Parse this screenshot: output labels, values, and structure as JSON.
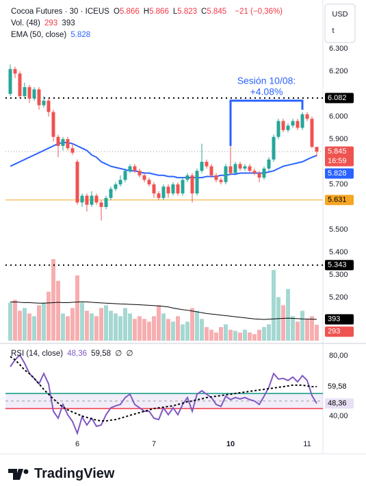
{
  "header": {
    "symbol": "Cocoa Futures · 30 · ICEUS",
    "ohlc": [
      {
        "label": "O",
        "value": "5.866"
      },
      {
        "label": "H",
        "value": "5.866"
      },
      {
        "label": "L",
        "value": "5.823"
      },
      {
        "label": "C",
        "value": "5.845"
      }
    ],
    "change": "−21 (−0,36%)",
    "currency": "USD",
    "currency_icon": "t",
    "countdown": "16:59"
  },
  "brand": "TradingView",
  "chart_data": {
    "type": "candlestick",
    "categories": [
      null,
      null,
      null,
      null,
      null,
      null,
      null,
      null,
      null,
      null,
      null,
      null,
      null,
      null,
      "6",
      null,
      null,
      null,
      null,
      null,
      null,
      null,
      null,
      null,
      null,
      null,
      null,
      null,
      null,
      null,
      "7",
      null,
      null,
      null,
      null,
      null,
      null,
      null,
      null,
      null,
      null,
      null,
      null,
      null,
      null,
      null,
      "10",
      null,
      null,
      null,
      null,
      null,
      null,
      null,
      null,
      null,
      null,
      null,
      null,
      null,
      null,
      null,
      "11",
      null,
      null
    ],
    "open": [
      6.1,
      6.21,
      6.19,
      6.09,
      6.13,
      6.08,
      6.12,
      6.05,
      6.07,
      6.02,
      5.91,
      5.87,
      5.9,
      5.86,
      5.8,
      5.62,
      5.65,
      5.61,
      5.65,
      5.62,
      5.6,
      5.64,
      5.68,
      5.7,
      5.72,
      5.76,
      5.78,
      5.76,
      5.74,
      5.72,
      5.7,
      5.66,
      5.64,
      5.69,
      5.66,
      5.7,
      5.66,
      5.72,
      5.74,
      5.66,
      5.76,
      5.8,
      5.78,
      5.74,
      5.72,
      5.71,
      5.78,
      5.75,
      5.79,
      5.77,
      5.78,
      5.76,
      5.75,
      5.73,
      5.77,
      5.81,
      5.91,
      5.98,
      5.94,
      5.96,
      5.98,
      5.95,
      6.01,
      5.99,
      5.866
    ],
    "high": [
      6.23,
      6.22,
      6.2,
      6.15,
      6.14,
      6.13,
      6.13,
      6.09,
      6.08,
      6.03,
      5.92,
      5.91,
      5.91,
      5.88,
      5.81,
      5.66,
      5.66,
      5.67,
      5.66,
      5.63,
      5.65,
      5.69,
      5.71,
      5.74,
      5.77,
      5.79,
      5.79,
      5.77,
      5.75,
      5.73,
      5.71,
      5.67,
      5.7,
      5.7,
      5.71,
      5.71,
      5.73,
      5.75,
      5.75,
      5.77,
      5.88,
      5.81,
      5.79,
      5.75,
      5.73,
      5.79,
      5.87,
      5.8,
      5.8,
      5.79,
      5.79,
      5.77,
      5.76,
      5.78,
      5.82,
      5.92,
      5.99,
      5.99,
      5.97,
      5.99,
      5.99,
      6.02,
      6.02,
      6.0,
      5.866
    ],
    "low": [
      6.09,
      6.17,
      6.08,
      6.08,
      6.06,
      6.07,
      6.03,
      6.04,
      6.0,
      5.89,
      5.82,
      5.85,
      5.85,
      5.83,
      5.61,
      5.6,
      5.58,
      5.6,
      5.61,
      5.54,
      5.59,
      5.63,
      5.67,
      5.69,
      5.71,
      5.75,
      5.75,
      5.73,
      5.71,
      5.69,
      5.64,
      5.63,
      5.63,
      5.64,
      5.65,
      5.65,
      5.65,
      5.71,
      5.62,
      5.65,
      5.75,
      5.77,
      5.73,
      5.71,
      5.7,
      5.7,
      5.74,
      5.74,
      5.76,
      5.76,
      5.75,
      5.74,
      5.71,
      5.72,
      5.76,
      5.8,
      5.9,
      5.93,
      5.93,
      5.95,
      5.94,
      5.94,
      5.98,
      5.86,
      5.823
    ],
    "close": [
      6.21,
      6.19,
      6.09,
      6.13,
      6.08,
      6.12,
      6.05,
      6.07,
      6.02,
      5.91,
      5.87,
      5.9,
      5.86,
      5.84,
      5.62,
      5.65,
      5.61,
      5.65,
      5.62,
      5.6,
      5.64,
      5.68,
      5.7,
      5.72,
      5.76,
      5.78,
      5.76,
      5.74,
      5.72,
      5.7,
      5.66,
      5.64,
      5.69,
      5.66,
      5.7,
      5.66,
      5.72,
      5.74,
      5.66,
      5.76,
      5.8,
      5.78,
      5.74,
      5.72,
      5.71,
      5.78,
      5.75,
      5.79,
      5.77,
      5.78,
      5.76,
      5.75,
      5.73,
      5.77,
      5.81,
      5.91,
      5.98,
      5.94,
      5.96,
      5.98,
      5.95,
      6.01,
      5.99,
      5.866,
      5.845
    ],
    "up_color": "#26a69a",
    "down_color": "#ef5350",
    "ylim": [
      5.0,
      6.5
    ],
    "yticks": [
      {
        "value": 6.3,
        "label": "6.300"
      },
      {
        "value": 6.2,
        "label": "6.200"
      },
      {
        "value": 6.0,
        "label": "6.000"
      },
      {
        "value": 5.9,
        "label": "5.900"
      },
      {
        "value": 5.7,
        "label": "5.700"
      },
      {
        "value": 5.5,
        "label": "5.500"
      },
      {
        "value": 5.4,
        "label": "5.400"
      },
      {
        "value": 5.3,
        "label": "5.300"
      },
      {
        "value": 5.2,
        "label": "5.200"
      }
    ],
    "grid": false,
    "ema": {
      "name": "EMA (50, close)",
      "color": "#2962ff",
      "values": [
        5.78,
        5.79,
        5.8,
        5.81,
        5.82,
        5.83,
        5.84,
        5.85,
        5.86,
        5.87,
        5.88,
        5.885,
        5.885,
        5.88,
        5.87,
        5.86,
        5.85,
        5.83,
        5.82,
        5.8,
        5.79,
        5.78,
        5.775,
        5.77,
        5.765,
        5.76,
        5.76,
        5.755,
        5.75,
        5.75,
        5.745,
        5.74,
        5.74,
        5.735,
        5.735,
        5.73,
        5.73,
        5.73,
        5.73,
        5.73,
        5.73,
        5.735,
        5.735,
        5.735,
        5.74,
        5.74,
        5.745,
        5.745,
        5.75,
        5.75,
        5.75,
        5.75,
        5.75,
        5.75,
        5.755,
        5.76,
        5.77,
        5.78,
        5.785,
        5.79,
        5.795,
        5.8,
        5.81,
        5.82,
        5.828
      ]
    },
    "hlines": [
      {
        "value": 6.082,
        "color": "#000000",
        "dotted": true
      },
      {
        "value": 5.631,
        "color": "#f5a623",
        "dotted": false
      },
      {
        "value": 5.343,
        "color": "#000000",
        "dotted": true
      }
    ],
    "annotation": {
      "text": [
        "Sesión 10/08:",
        "+4.08%"
      ],
      "color": "#2962ff",
      "start": 46,
      "end": 61,
      "start_price": 5.87,
      "top_price": 6.07,
      "end_price": 6.03
    },
    "volume": {
      "name": "Vol. (48)",
      "ylim": [
        0,
        6200
      ],
      "up_color": "#a5d8d2",
      "down_color": "#f7aeb0",
      "values": [
        700,
        750,
        550,
        600,
        500,
        450,
        650,
        700,
        900,
        1500,
        1100,
        500,
        450,
        600,
        1200,
        700,
        550,
        500,
        450,
        600,
        650,
        550,
        500,
        450,
        600,
        500,
        400,
        450,
        400,
        350,
        450,
        650,
        500,
        400,
        350,
        450,
        300,
        350,
        600,
        550,
        400,
        250,
        200,
        150,
        250,
        300,
        200,
        180,
        150,
        200,
        150,
        120,
        200,
        250,
        300,
        1300,
        800,
        650,
        950,
        450,
        350,
        550,
        400,
        450,
        293
      ],
      "ma": {
        "color": "#000000",
        "values": [
          710,
          712,
          705,
          700,
          700,
          695,
          690,
          690,
          695,
          700,
          705,
          700,
          700,
          705,
          710,
          715,
          712,
          705,
          700,
          695,
          690,
          685,
          680,
          675,
          672,
          668,
          665,
          660,
          655,
          650,
          645,
          640,
          630,
          620,
          600,
          585,
          570,
          560,
          545,
          530,
          515,
          500,
          490,
          480,
          470,
          460,
          450,
          440,
          430,
          420,
          410,
          400,
          395,
          390,
          395,
          400,
          405,
          410,
          415,
          410,
          405,
          400,
          398,
          395,
          393
        ]
      }
    },
    "rsi": {
      "name": "RSI (14, close)",
      "color": "#7e57c2",
      "ylim": [
        25,
        86
      ],
      "yticks": [
        {
          "value": 80,
          "label": "80,00"
        },
        {
          "value": 40,
          "label": "40,00"
        }
      ],
      "upper": 55,
      "middle": 50,
      "lower": 45,
      "upper_color": "#089981",
      "lower_color": "#f23645",
      "band_color": "#7e57c2",
      "values": [
        72.7,
        77.3,
        80.5,
        75,
        68.2,
        65,
        61.4,
        68.2,
        61.4,
        43.2,
        38.6,
        47.7,
        40.9,
        36.4,
        28.6,
        39.5,
        34.1,
        38.6,
        33.2,
        34.1,
        40.9,
        45.5,
        46.8,
        47.7,
        52.3,
        54.5,
        47.7,
        45.5,
        43.2,
        43.2,
        38.6,
        37.7,
        45.5,
        40.9,
        45.5,
        40.9,
        47.7,
        52.3,
        43.2,
        54.5,
        56.8,
        54.5,
        52.3,
        47.7,
        46.4,
        53.2,
        50.9,
        52.3,
        51.4,
        52.3,
        50.9,
        50,
        47.7,
        53.2,
        59.1,
        68.2,
        64.5,
        65,
        63.6,
        65.9,
        62.7,
        66.8,
        63.6,
        53.6,
        48.36
      ],
      "last_label": "48,36",
      "ma": {
        "color": "#000000",
        "last_label": "59,58",
        "values": [
          79.5,
          77.3,
          74.1,
          70.5,
          68.2,
          65,
          61.4,
          57.7,
          54.5,
          51.4,
          48.6,
          45.9,
          44.1,
          42.7,
          41.4,
          40,
          39.1,
          38.2,
          37.3,
          36.8,
          36.8,
          37.3,
          37.7,
          38.6,
          39.5,
          40.5,
          41.4,
          42.3,
          43.2,
          44.1,
          45,
          45.5,
          45.9,
          46.4,
          46.8,
          47.7,
          48.6,
          49.5,
          50,
          50.9,
          51.4,
          52.3,
          52.7,
          53.2,
          53.6,
          54.1,
          54.5,
          55,
          55.5,
          55.9,
          56.4,
          56.8,
          57.3,
          57.7,
          58.2,
          58.6,
          59.1,
          59.5,
          60,
          60.5,
          60.5,
          60.5,
          60,
          59.5,
          59.58
        ]
      },
      "extras": [
        "∅",
        "∅"
      ]
    }
  }
}
